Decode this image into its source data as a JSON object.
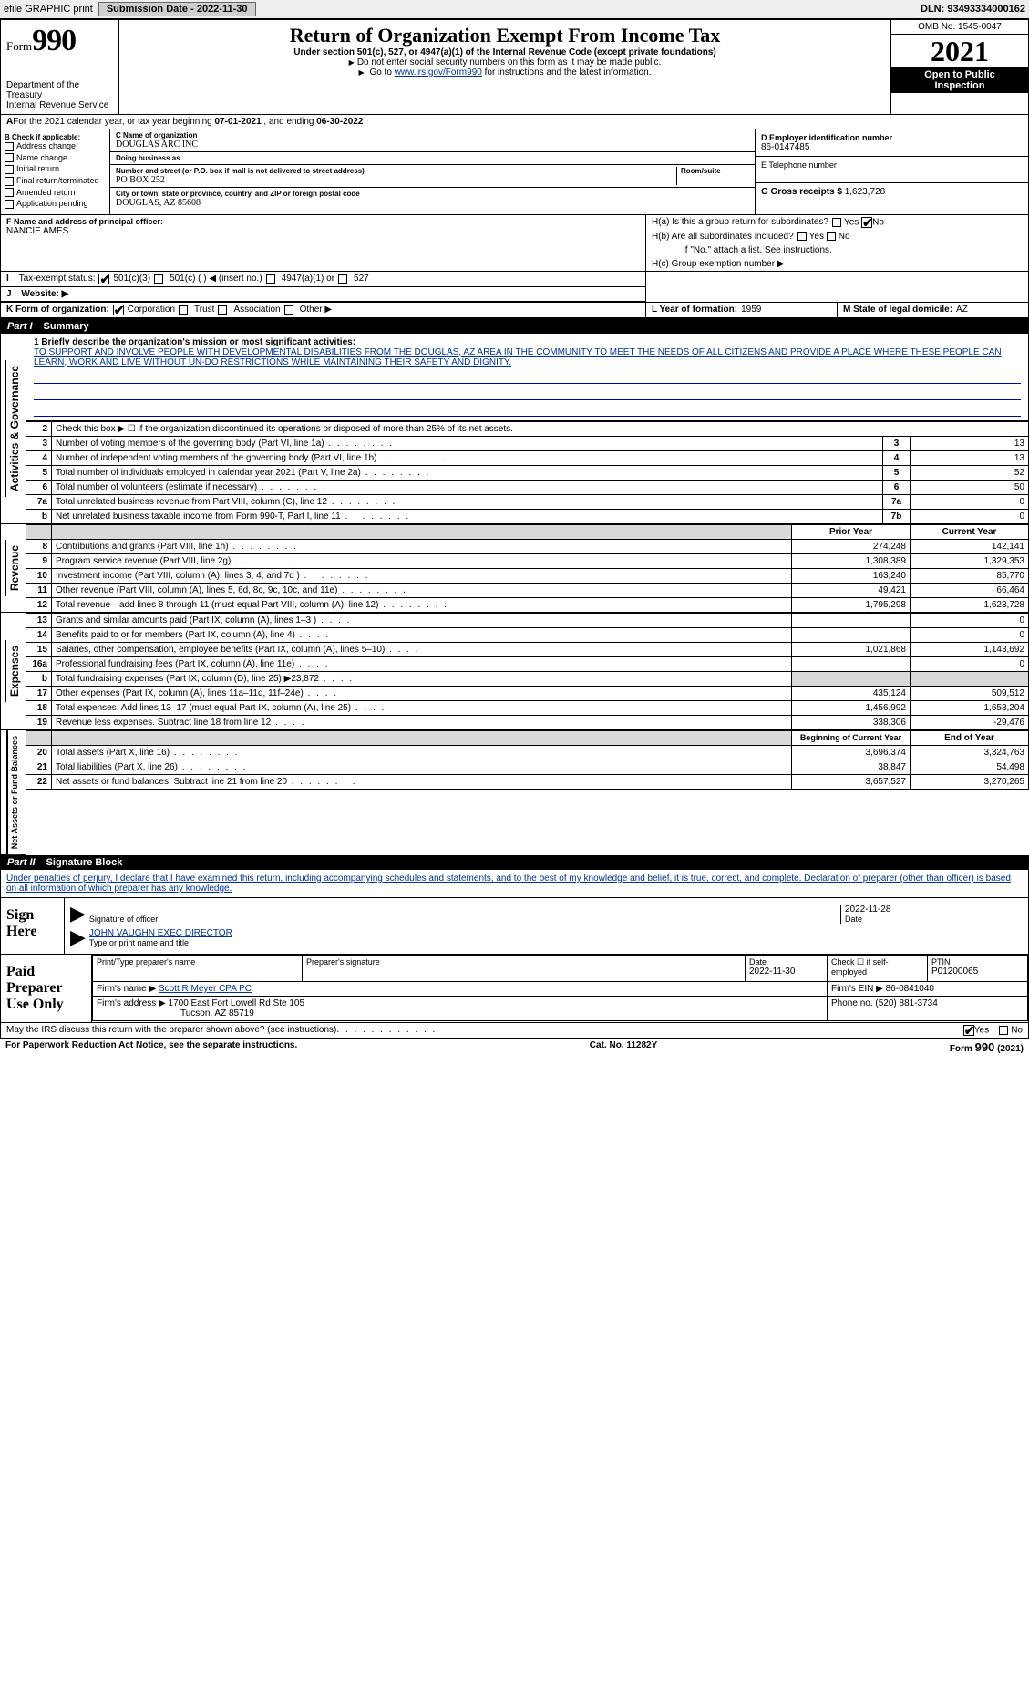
{
  "topbar": {
    "efile_label": "efile GRAPHIC print",
    "submission_label": "Submission Date - 2022-11-30",
    "dln_label": "DLN: 93493334000162"
  },
  "header": {
    "form_prefix": "Form",
    "form_number": "990",
    "title": "Return of Organization Exempt From Income Tax",
    "subtitle": "Under section 501(c), 527, or 4947(a)(1) of the Internal Revenue Code (except private foundations)",
    "ssn_note": "Do not enter social security numbers on this form as it may be made public.",
    "goto_prefix": "Go to ",
    "goto_link": "www.irs.gov/Form990",
    "goto_suffix": " for instructions and the latest information.",
    "dept": "Department of the Treasury",
    "irs": "Internal Revenue Service",
    "omb": "OMB No. 1545-0047",
    "year": "2021",
    "open_public1": "Open to Public",
    "open_public2": "Inspection"
  },
  "calendar": {
    "text_a": "For the 2021 calendar year, or tax year beginning ",
    "begin": "07-01-2021",
    "text_b": " , and ending ",
    "end": "06-30-2022"
  },
  "box_b": {
    "title": "B Check if applicable:",
    "items": [
      "Address change",
      "Name change",
      "Initial return",
      "Final return/terminated",
      "Amended return",
      "Application pending"
    ]
  },
  "box_c": {
    "name_label": "C Name of organization",
    "name_value": "DOUGLAS ARC INC",
    "dba_label": "Doing business as",
    "dba_value": "",
    "street_label": "Number and street (or P.O. box if mail is not delivered to street address)",
    "room_label": "Room/suite",
    "street_value": "PO BOX 252",
    "city_label": "City or town, state or province, country, and ZIP or foreign postal code",
    "city_value": "DOUGLAS, AZ  85608"
  },
  "box_d": {
    "label": "D Employer identification number",
    "value": "86-0147485"
  },
  "box_e": {
    "label": "E Telephone number",
    "value": ""
  },
  "box_g": {
    "label": "G Gross receipts $ ",
    "value": "1,623,728"
  },
  "box_f": {
    "label": "F Name and address of principal officer:",
    "value": "NANCIE AMES"
  },
  "box_h": {
    "ha_label": "H(a)  Is this a group return for subordinates?",
    "hb_label": "H(b)  Are all subordinates included?",
    "hb_note": "If \"No,\" attach a list. See instructions.",
    "hc_label": "H(c)  Group exemption number ▶",
    "yes": "Yes",
    "no": "No",
    "ha_answer": "No"
  },
  "box_i": {
    "label": "Tax-exempt status:",
    "opt1": "501(c)(3)",
    "opt2": "501(c) (  ) ◀ (insert no.)",
    "opt3": "4947(a)(1) or",
    "opt4": "527",
    "checked": "501(c)(3)"
  },
  "box_j": {
    "label": "Website: ▶",
    "value": ""
  },
  "box_k": {
    "label": "K Form of organization:",
    "opts": [
      "Corporation",
      "Trust",
      "Association",
      "Other ▶"
    ],
    "checked": "Corporation"
  },
  "box_l": {
    "label": "L Year of formation: ",
    "value": "1959"
  },
  "box_m": {
    "label": "M State of legal domicile: ",
    "value": "AZ"
  },
  "part1": {
    "num": "Part I",
    "title": "Summary"
  },
  "mission": {
    "label": "1  Briefly describe the organization's mission or most significant activities:",
    "text": "TO SUPPORT AND INVOLVE PEOPLE WITH DEVELOPMENTAL DISABILITIES FROM THE DOUGLAS, AZ AREA IN THE COMMUNITY TO MEET THE NEEDS OF ALL CITIZENS AND PROVIDE A PLACE WHERE THESE PEOPLE CAN LEARN, WORK AND LIVE WITHOUT UN-DO RESTRICTIONS WHILE MAINTAINING THEIR SAFETY AND DIGNITY."
  },
  "gov_rows": [
    {
      "n": "2",
      "text": "Check this box ▶ ☐ if the organization discontinued its operations or disposed of more than 25% of its net assets.",
      "box": "",
      "val": ""
    },
    {
      "n": "3",
      "text": "Number of voting members of the governing body (Part VI, line 1a)",
      "box": "3",
      "val": "13"
    },
    {
      "n": "4",
      "text": "Number of independent voting members of the governing body (Part VI, line 1b)",
      "box": "4",
      "val": "13"
    },
    {
      "n": "5",
      "text": "Total number of individuals employed in calendar year 2021 (Part V, line 2a)",
      "box": "5",
      "val": "52"
    },
    {
      "n": "6",
      "text": "Total number of volunteers (estimate if necessary)",
      "box": "6",
      "val": "50"
    },
    {
      "n": "7a",
      "text": "Total unrelated business revenue from Part VIII, column (C), line 12",
      "box": "7a",
      "val": "0"
    },
    {
      "n": "b",
      "text": "Net unrelated business taxable income from Form 990-T, Part I, line 11",
      "box": "7b",
      "val": "0"
    }
  ],
  "py_header": "Prior Year",
  "cy_header": "Current Year",
  "rev_rows": [
    {
      "n": "8",
      "text": "Contributions and grants (Part VIII, line 1h)",
      "py": "274,248",
      "cy": "142,141"
    },
    {
      "n": "9",
      "text": "Program service revenue (Part VIII, line 2g)",
      "py": "1,308,389",
      "cy": "1,329,353"
    },
    {
      "n": "10",
      "text": "Investment income (Part VIII, column (A), lines 3, 4, and 7d )",
      "py": "163,240",
      "cy": "85,770"
    },
    {
      "n": "11",
      "text": "Other revenue (Part VIII, column (A), lines 5, 6d, 8c, 9c, 10c, and 11e)",
      "py": "49,421",
      "cy": "66,464"
    },
    {
      "n": "12",
      "text": "Total revenue—add lines 8 through 11 (must equal Part VIII, column (A), line 12)",
      "py": "1,795,298",
      "cy": "1,623,728"
    }
  ],
  "exp_rows": [
    {
      "n": "13",
      "text": "Grants and similar amounts paid (Part IX, column (A), lines 1–3 )",
      "py": "",
      "cy": "0"
    },
    {
      "n": "14",
      "text": "Benefits paid to or for members (Part IX, column (A), line 4)",
      "py": "",
      "cy": "0"
    },
    {
      "n": "15",
      "text": "Salaries, other compensation, employee benefits (Part IX, column (A), lines 5–10)",
      "py": "1,021,868",
      "cy": "1,143,692"
    },
    {
      "n": "16a",
      "text": "Professional fundraising fees (Part IX, column (A), line 11e)",
      "py": "",
      "cy": "0"
    },
    {
      "n": "b",
      "text": "Total fundraising expenses (Part IX, column (D), line 25) ▶23,872",
      "py": "shade",
      "cy": "shade"
    },
    {
      "n": "17",
      "text": "Other expenses (Part IX, column (A), lines 11a–11d, 11f–24e)",
      "py": "435,124",
      "cy": "509,512"
    },
    {
      "n": "18",
      "text": "Total expenses. Add lines 13–17 (must equal Part IX, column (A), line 25)",
      "py": "1,456,992",
      "cy": "1,653,204"
    },
    {
      "n": "19",
      "text": "Revenue less expenses. Subtract line 18 from line 12",
      "py": "338,306",
      "cy": "-29,476"
    }
  ],
  "bcy_header": "Beginning of Current Year",
  "eoy_header": "End of Year",
  "na_rows": [
    {
      "n": "20",
      "text": "Total assets (Part X, line 16)",
      "py": "3,696,374",
      "cy": "3,324,763"
    },
    {
      "n": "21",
      "text": "Total liabilities (Part X, line 26)",
      "py": "38,847",
      "cy": "54,498"
    },
    {
      "n": "22",
      "text": "Net assets or fund balances. Subtract line 21 from line 20",
      "py": "3,657,527",
      "cy": "3,270,265"
    }
  ],
  "side_labels": {
    "gov": "Activities & Governance",
    "rev": "Revenue",
    "exp": "Expenses",
    "na": "Net Assets or Fund Balances"
  },
  "part2": {
    "num": "Part II",
    "title": "Signature Block"
  },
  "jurat": "Under penalties of perjury, I declare that I have examined this return, including accompanying schedules and statements, and to the best of my knowledge and belief, it is true, correct, and complete. Declaration of preparer (other than officer) is based on all information of which preparer has any knowledge.",
  "sign": {
    "label1": "Sign",
    "label2": "Here",
    "sig_caption": "Signature of officer",
    "date_caption": "Date",
    "date_value": "2022-11-28",
    "name_caption": "Type or print name and title",
    "name_value": "JOHN VAUGHN  EXEC DIRECTOR"
  },
  "preparer": {
    "label1": "Paid",
    "label2": "Preparer",
    "label3": "Use Only",
    "h_print": "Print/Type preparer's name",
    "h_sig": "Preparer's signature",
    "h_date": "Date",
    "date_value": "2022-11-30",
    "h_check": "Check ☐ if self-employed",
    "h_ptin": "PTIN",
    "ptin_value": "P01200065",
    "firm_name_label": "Firm's name    ▶",
    "firm_name": "Scott R Meyer CPA PC",
    "firm_ein_label": "Firm's EIN ▶",
    "firm_ein": "86-0841040",
    "firm_addr_label": "Firm's address ▶",
    "firm_addr1": "1700 East Fort Lowell Rd Ste 105",
    "firm_addr2": "Tucson, AZ  85719",
    "phone_label": "Phone no.",
    "phone": "(520) 881-3734"
  },
  "discuss": {
    "text": "May the IRS discuss this return with the preparer shown above? (see instructions)",
    "yes": "Yes",
    "no": "No",
    "answer": "Yes"
  },
  "footer": {
    "left": "For Paperwork Reduction Act Notice, see the separate instructions.",
    "mid": "Cat. No. 11282Y",
    "right": "Form 990 (2021)"
  },
  "colors": {
    "header_bg": "#000000",
    "link": "#003399",
    "shade": "#d9d9d9",
    "topbar_bg": "#eeeeee"
  }
}
